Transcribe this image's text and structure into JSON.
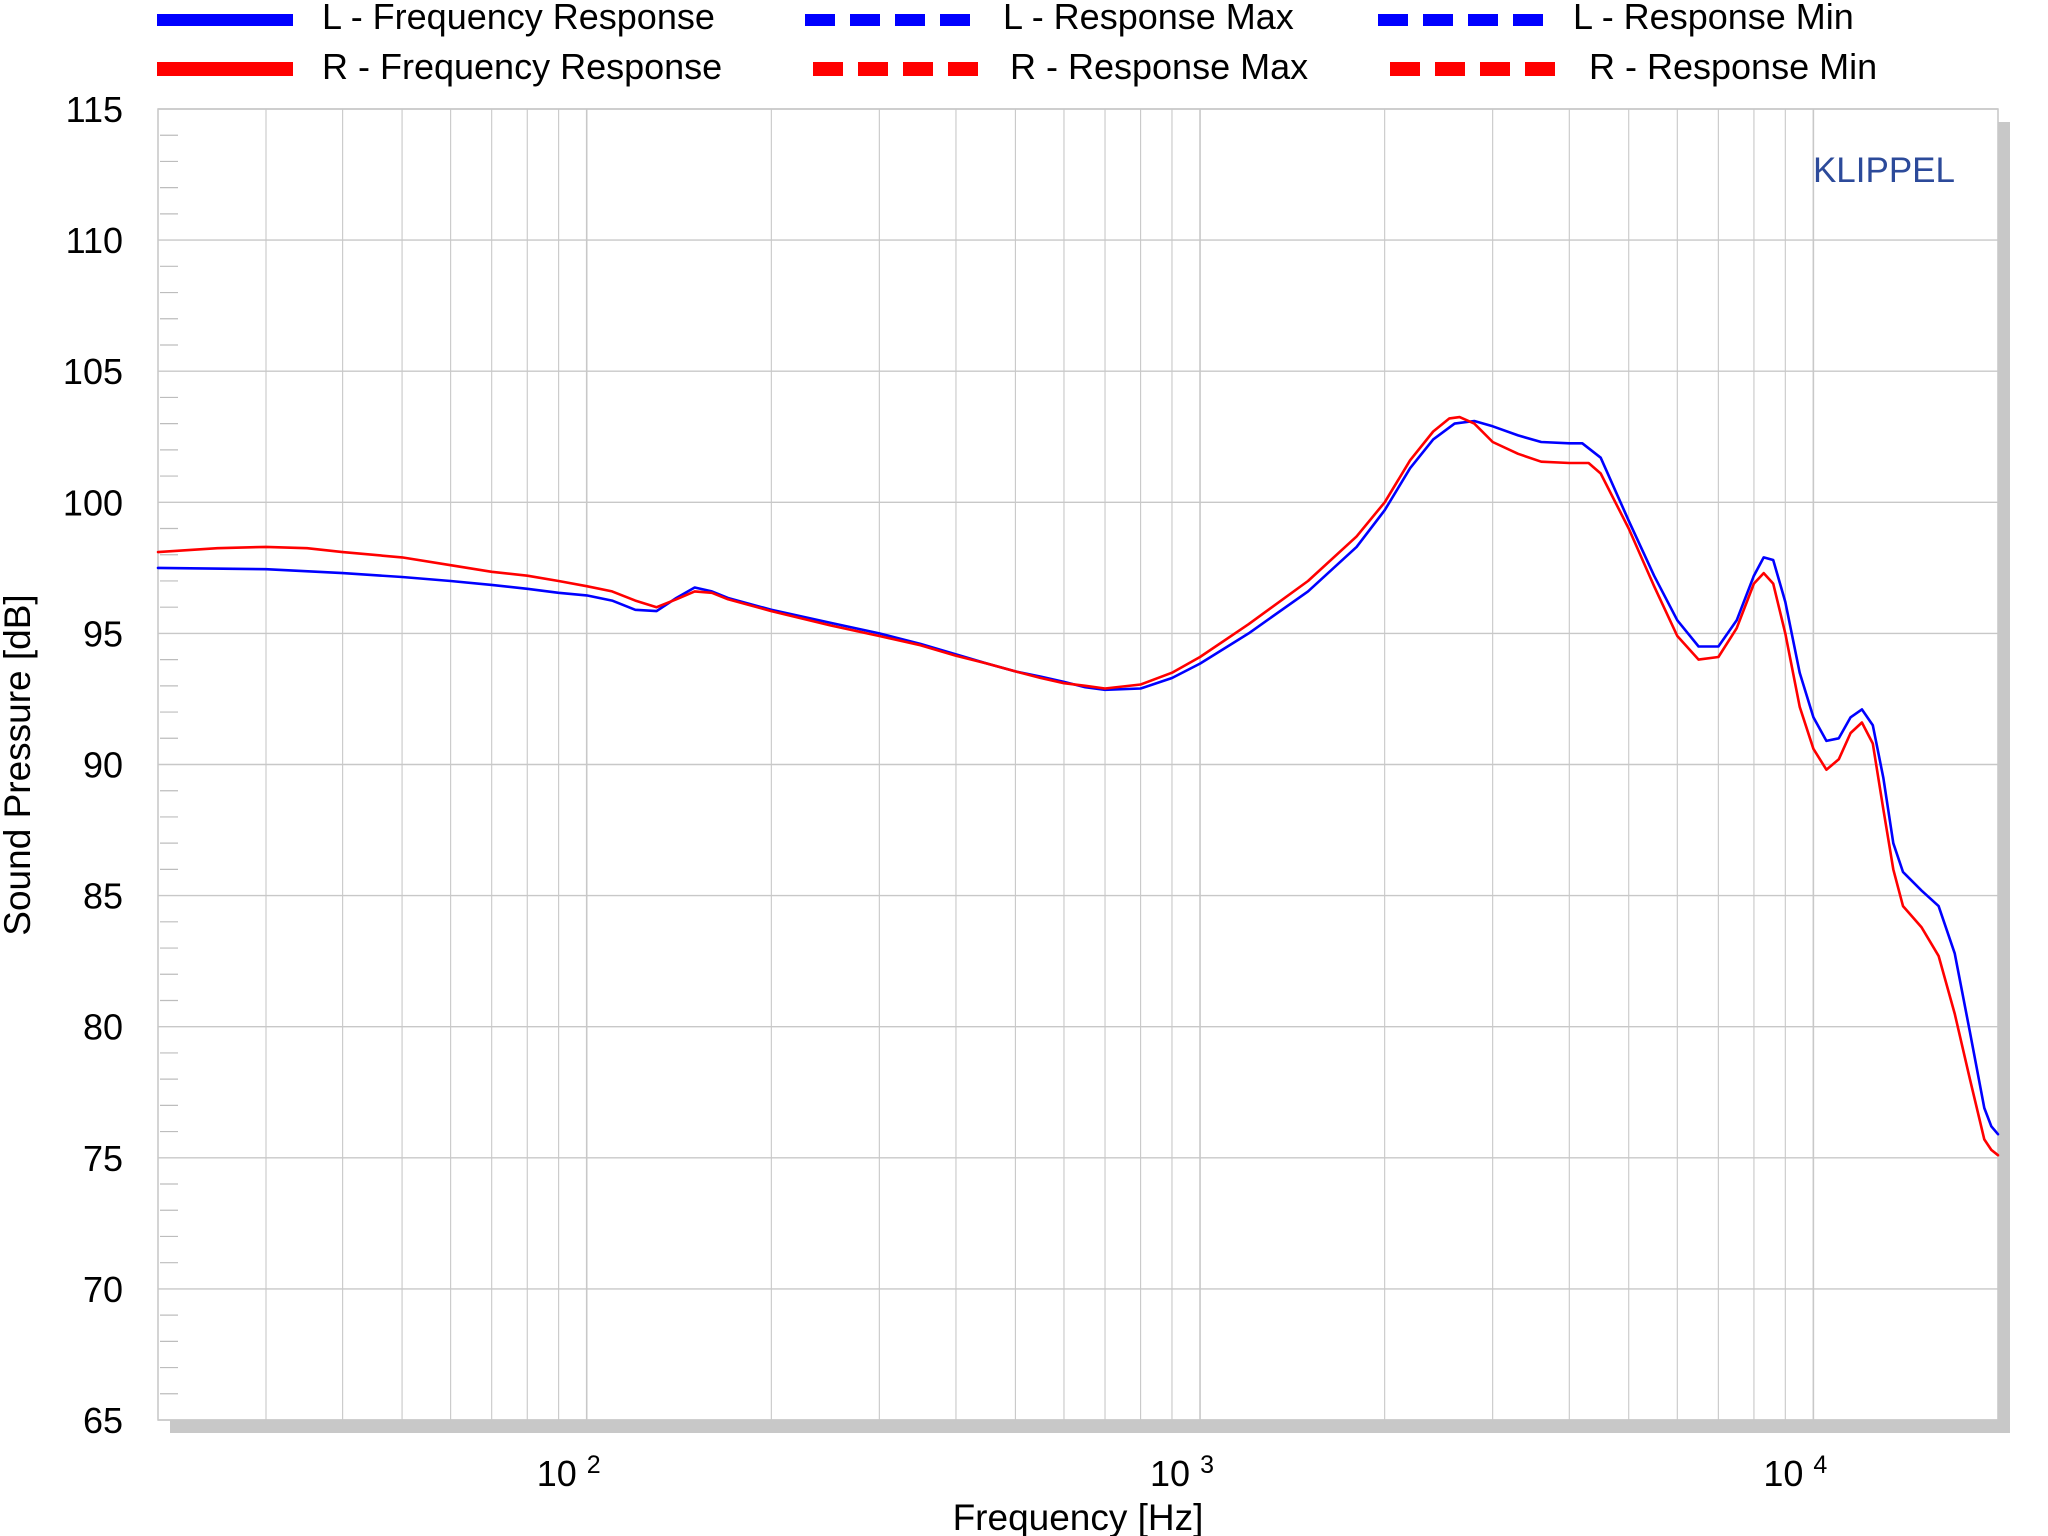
{
  "chart_data": {
    "type": "line",
    "title": "",
    "xlabel": "Frequency  [Hz]",
    "ylabel": "Sound Pressure  [dB]",
    "watermark": "KLIPPEL",
    "x_scale": "log",
    "xlim": [
      20,
      20000
    ],
    "ylim": [
      65,
      115
    ],
    "grid": true,
    "legend_position": "top",
    "y_ticks": [
      "115",
      "110",
      "105",
      "100",
      "95",
      "90",
      "85",
      "80",
      "75",
      "70",
      "65"
    ],
    "x_ticks": [
      {
        "value": 100,
        "base": "10",
        "exp": "2"
      },
      {
        "value": 1000,
        "base": "10",
        "exp": "3"
      },
      {
        "value": 10000,
        "base": "10",
        "exp": "4"
      }
    ],
    "colors": {
      "left": "#0000ff",
      "right": "#ff0000",
      "watermark": "#2c4a9a",
      "frame_shadow": "#c8c8c8",
      "grid": "#c8c8c8"
    },
    "series": [
      {
        "name": "L - Frequency Response",
        "style": "solid",
        "color": "#0000ff",
        "points": [
          [
            20,
            97.5
          ],
          [
            30,
            97.45
          ],
          [
            40,
            97.3
          ],
          [
            50,
            97.15
          ],
          [
            60,
            97.0
          ],
          [
            70,
            96.85
          ],
          [
            80,
            96.7
          ],
          [
            90,
            96.55
          ],
          [
            100,
            96.45
          ],
          [
            110,
            96.25
          ],
          [
            120,
            95.9
          ],
          [
            130,
            95.85
          ],
          [
            140,
            96.35
          ],
          [
            150,
            96.75
          ],
          [
            160,
            96.6
          ],
          [
            170,
            96.35
          ],
          [
            200,
            95.9
          ],
          [
            250,
            95.4
          ],
          [
            300,
            95.0
          ],
          [
            350,
            94.6
          ],
          [
            400,
            94.2
          ],
          [
            450,
            93.85
          ],
          [
            500,
            93.55
          ],
          [
            550,
            93.35
          ],
          [
            600,
            93.15
          ],
          [
            650,
            92.95
          ],
          [
            700,
            92.85
          ],
          [
            800,
            92.9
          ],
          [
            900,
            93.3
          ],
          [
            1000,
            93.85
          ],
          [
            1200,
            95.0
          ],
          [
            1500,
            96.6
          ],
          [
            1800,
            98.3
          ],
          [
            2000,
            99.7
          ],
          [
            2200,
            101.3
          ],
          [
            2400,
            102.4
          ],
          [
            2600,
            103.0
          ],
          [
            2800,
            103.1
          ],
          [
            3000,
            102.9
          ],
          [
            3300,
            102.55
          ],
          [
            3600,
            102.3
          ],
          [
            4000,
            102.25
          ],
          [
            4200,
            102.25
          ],
          [
            4500,
            101.7
          ],
          [
            5000,
            99.3
          ],
          [
            5500,
            97.2
          ],
          [
            6000,
            95.5
          ],
          [
            6500,
            94.5
          ],
          [
            7000,
            94.5
          ],
          [
            7500,
            95.5
          ],
          [
            8000,
            97.2
          ],
          [
            8300,
            97.9
          ],
          [
            8600,
            97.8
          ],
          [
            9000,
            96.2
          ],
          [
            9500,
            93.5
          ],
          [
            10000,
            91.8
          ],
          [
            10500,
            90.9
          ],
          [
            11000,
            91.0
          ],
          [
            11500,
            91.8
          ],
          [
            12000,
            92.1
          ],
          [
            12500,
            91.5
          ],
          [
            13000,
            89.5
          ],
          [
            13500,
            87.0
          ],
          [
            14000,
            85.9
          ],
          [
            15000,
            85.2
          ],
          [
            16000,
            84.6
          ],
          [
            17000,
            82.8
          ],
          [
            18000,
            79.8
          ],
          [
            19000,
            76.9
          ],
          [
            19500,
            76.2
          ],
          [
            20000,
            75.9
          ]
        ]
      },
      {
        "name": "L - Response Max",
        "style": "dashed",
        "color": "#0000ff",
        "points": []
      },
      {
        "name": "L - Response Min",
        "style": "dashed",
        "color": "#0000ff",
        "points": []
      },
      {
        "name": "R - Frequency Response",
        "style": "solid",
        "color": "#ff0000",
        "points": [
          [
            20,
            98.1
          ],
          [
            25,
            98.25
          ],
          [
            30,
            98.3
          ],
          [
            35,
            98.25
          ],
          [
            40,
            98.1
          ],
          [
            50,
            97.9
          ],
          [
            60,
            97.6
          ],
          [
            70,
            97.35
          ],
          [
            80,
            97.2
          ],
          [
            90,
            97.0
          ],
          [
            100,
            96.8
          ],
          [
            110,
            96.6
          ],
          [
            120,
            96.25
          ],
          [
            130,
            96.0
          ],
          [
            140,
            96.3
          ],
          [
            150,
            96.6
          ],
          [
            160,
            96.55
          ],
          [
            170,
            96.3
          ],
          [
            200,
            95.85
          ],
          [
            250,
            95.3
          ],
          [
            300,
            94.9
          ],
          [
            350,
            94.55
          ],
          [
            400,
            94.15
          ],
          [
            450,
            93.85
          ],
          [
            500,
            93.55
          ],
          [
            550,
            93.3
          ],
          [
            600,
            93.1
          ],
          [
            650,
            93.0
          ],
          [
            700,
            92.9
          ],
          [
            800,
            93.05
          ],
          [
            900,
            93.5
          ],
          [
            1000,
            94.1
          ],
          [
            1200,
            95.35
          ],
          [
            1500,
            97.0
          ],
          [
            1800,
            98.7
          ],
          [
            2000,
            100.0
          ],
          [
            2200,
            101.6
          ],
          [
            2400,
            102.7
          ],
          [
            2550,
            103.2
          ],
          [
            2650,
            103.25
          ],
          [
            2800,
            103.0
          ],
          [
            3000,
            102.3
          ],
          [
            3300,
            101.85
          ],
          [
            3600,
            101.55
          ],
          [
            4000,
            101.5
          ],
          [
            4300,
            101.5
          ],
          [
            4500,
            101.1
          ],
          [
            5000,
            99.0
          ],
          [
            5500,
            96.8
          ],
          [
            6000,
            94.9
          ],
          [
            6500,
            94.0
          ],
          [
            7000,
            94.1
          ],
          [
            7500,
            95.2
          ],
          [
            8000,
            96.9
          ],
          [
            8300,
            97.3
          ],
          [
            8600,
            96.9
          ],
          [
            9000,
            95.0
          ],
          [
            9500,
            92.2
          ],
          [
            10000,
            90.6
          ],
          [
            10500,
            89.8
          ],
          [
            11000,
            90.2
          ],
          [
            11500,
            91.2
          ],
          [
            12000,
            91.6
          ],
          [
            12500,
            90.8
          ],
          [
            13000,
            88.3
          ],
          [
            13500,
            86.0
          ],
          [
            14000,
            84.6
          ],
          [
            15000,
            83.8
          ],
          [
            16000,
            82.7
          ],
          [
            17000,
            80.5
          ],
          [
            18000,
            78.0
          ],
          [
            19000,
            75.7
          ],
          [
            19500,
            75.3
          ],
          [
            20000,
            75.1
          ]
        ]
      },
      {
        "name": "R - Response Max",
        "style": "dashed",
        "color": "#ff0000",
        "points": []
      },
      {
        "name": "R - Response Min",
        "style": "dashed",
        "color": "#ff0000",
        "points": []
      }
    ]
  }
}
